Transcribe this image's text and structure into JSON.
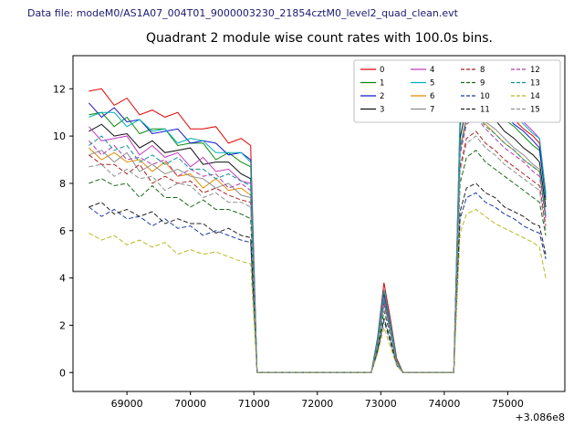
{
  "chart_data": {
    "type": "line",
    "header": "Data file: modeM0/AS1A07_004T01_9000003230_21854cztM0_level2_quad_clean.evt",
    "header_color": "#191970",
    "title": "Quadrant 2 module wise count rates with 100.0s bins.",
    "xlabel": "",
    "ylabel": "",
    "x_offset_label": "+3.086e8",
    "xlim": [
      68150,
      75900
    ],
    "ylim": [
      -0.8,
      13.4
    ],
    "x_ticks": [
      69000,
      70000,
      71000,
      72000,
      73000,
      74000,
      75000
    ],
    "y_ticks": [
      0,
      2,
      4,
      6,
      8,
      10,
      12
    ],
    "grid": false,
    "legend_position": "upper right",
    "legend_columns": 4,
    "x": [
      68400,
      68600,
      68800,
      69000,
      69200,
      69400,
      69600,
      69800,
      70000,
      70200,
      70400,
      70600,
      70800,
      70950,
      71050,
      72850,
      72950,
      73050,
      73150,
      73250,
      73350,
      74150,
      74250,
      74350,
      74500,
      74650,
      74800,
      74950,
      75100,
      75250,
      75400,
      75500,
      75600
    ],
    "series": [
      {
        "name": "0",
        "color": "#e00000",
        "dash": false,
        "values": [
          11.9,
          12.0,
          11.3,
          11.6,
          10.9,
          11.1,
          10.8,
          11.0,
          10.3,
          10.3,
          10.4,
          9.7,
          9.9,
          9.6,
          0,
          0,
          1.5,
          3.8,
          2.3,
          0.6,
          0,
          0,
          10.7,
          12.2,
          12.6,
          12.0,
          11.6,
          11.1,
          10.7,
          10.3,
          10.0,
          9.7,
          7.6
        ]
      },
      {
        "name": "1",
        "color": "#0a8a0a",
        "dash": false,
        "values": [
          10.9,
          11.0,
          10.4,
          10.8,
          10.1,
          10.3,
          10.3,
          9.6,
          9.7,
          9.7,
          9.0,
          9.3,
          8.9,
          8.7,
          0,
          0,
          1.4,
          3.5,
          2.1,
          0.5,
          0,
          0,
          10.4,
          11.8,
          12.2,
          11.6,
          11.2,
          10.7,
          10.4,
          10.0,
          9.6,
          9.4,
          7.3
        ]
      },
      {
        "name": "2",
        "color": "#1515d0",
        "dash": false,
        "values": [
          11.4,
          10.8,
          11.2,
          10.6,
          10.7,
          10.1,
          10.2,
          10.3,
          9.7,
          9.8,
          9.7,
          9.2,
          9.3,
          9.0,
          0,
          0,
          1.4,
          3.5,
          2.1,
          0.5,
          0,
          0,
          10.5,
          12.0,
          12.4,
          11.8,
          11.4,
          10.9,
          10.5,
          10.2,
          9.8,
          9.5,
          7.4
        ]
      },
      {
        "name": "3",
        "color": "#111111",
        "dash": false,
        "values": [
          10.2,
          10.5,
          10.0,
          10.1,
          9.5,
          9.8,
          9.3,
          9.4,
          9.5,
          8.8,
          8.9,
          8.9,
          8.4,
          8.2,
          0,
          0,
          1.3,
          3.3,
          2.0,
          0.5,
          0,
          0,
          9.9,
          11.3,
          11.6,
          11.0,
          10.7,
          10.2,
          9.9,
          9.5,
          9.2,
          8.9,
          7.0
        ]
      },
      {
        "name": "4",
        "color": "#c23ac2",
        "dash": false,
        "values": [
          10.4,
          9.8,
          9.9,
          10.0,
          9.2,
          9.6,
          9.1,
          9.3,
          8.7,
          9.1,
          8.5,
          8.6,
          8.1,
          8.0,
          0,
          0,
          1.3,
          3.2,
          1.9,
          0.5,
          0,
          0,
          11.0,
          12.5,
          12.9,
          12.3,
          11.9,
          11.4,
          11.0,
          10.6,
          10.2,
          9.9,
          7.6
        ]
      },
      {
        "name": "5",
        "color": "#00b2b2",
        "dash": false,
        "values": [
          10.8,
          11.0,
          11.0,
          10.4,
          10.7,
          10.2,
          10.3,
          9.7,
          9.9,
          9.8,
          9.3,
          9.3,
          9.3,
          8.9,
          0,
          0,
          1.4,
          3.5,
          2.1,
          0.5,
          0,
          0,
          10.9,
          12.4,
          12.8,
          12.2,
          11.8,
          11.3,
          10.9,
          10.5,
          10.1,
          9.9,
          7.5
        ]
      },
      {
        "name": "6",
        "color": "#e08a00",
        "dash": false,
        "values": [
          9.5,
          9.0,
          9.3,
          8.9,
          9.0,
          8.5,
          8.9,
          8.3,
          8.4,
          7.8,
          8.2,
          7.7,
          7.8,
          7.5,
          0,
          0,
          1.2,
          3.0,
          1.8,
          0.4,
          0,
          0,
          9.4,
          10.7,
          11.0,
          10.5,
          10.1,
          9.7,
          9.4,
          9.0,
          8.7,
          8.5,
          6.6
        ]
      },
      {
        "name": "7",
        "color": "#8c8c8c",
        "dash": false,
        "values": [
          9.2,
          9.4,
          8.9,
          9.3,
          8.5,
          8.8,
          8.4,
          8.6,
          8.3,
          8.2,
          7.8,
          8.0,
          7.5,
          7.4,
          0,
          0,
          1.2,
          3.0,
          1.8,
          0.4,
          0,
          0,
          9.5,
          10.9,
          11.2,
          10.6,
          10.3,
          9.9,
          9.5,
          9.2,
          8.8,
          8.6,
          6.7
        ]
      },
      {
        "name": "8",
        "color": "#aa2222",
        "dash": true,
        "values": [
          9.2,
          8.8,
          8.8,
          8.4,
          8.8,
          8.0,
          8.3,
          8.0,
          8.1,
          7.6,
          7.8,
          7.5,
          7.3,
          7.2,
          0,
          0,
          1.2,
          2.9,
          1.7,
          0.4,
          0,
          0,
          8.7,
          9.9,
          10.2,
          9.7,
          9.4,
          9.0,
          8.7,
          8.4,
          8.1,
          7.9,
          6.2
        ]
      },
      {
        "name": "9",
        "color": "#1a6b1a",
        "dash": true,
        "values": [
          8.0,
          8.2,
          7.9,
          8.0,
          7.4,
          7.9,
          7.4,
          7.4,
          7.0,
          7.3,
          6.9,
          6.9,
          6.7,
          6.5,
          0,
          0,
          1.0,
          2.6,
          1.6,
          0.4,
          0,
          0,
          8.0,
          9.1,
          9.4,
          8.9,
          8.6,
          8.3,
          8.0,
          7.7,
          7.4,
          7.2,
          5.8
        ]
      },
      {
        "name": "10",
        "color": "#1a3a9c",
        "dash": true,
        "values": [
          7.0,
          6.6,
          6.9,
          6.5,
          6.6,
          6.2,
          6.5,
          6.1,
          6.2,
          5.8,
          6.0,
          5.8,
          5.6,
          5.5,
          0,
          0,
          0.9,
          2.2,
          1.3,
          0.3,
          0,
          0,
          6.5,
          7.4,
          7.6,
          7.2,
          7.0,
          6.7,
          6.5,
          6.2,
          6.0,
          5.9,
          4.8
        ]
      },
      {
        "name": "11",
        "color": "#222222",
        "dash": true,
        "values": [
          7.0,
          7.2,
          6.7,
          6.9,
          6.6,
          6.8,
          6.3,
          6.5,
          6.3,
          6.3,
          5.9,
          6.1,
          5.8,
          5.7,
          0,
          0,
          0.9,
          2.3,
          1.4,
          0.3,
          0,
          0,
          6.8,
          7.8,
          8.0,
          7.6,
          7.4,
          7.0,
          6.8,
          6.6,
          6.3,
          6.2,
          5.0
        ]
      },
      {
        "name": "12",
        "color": "#b03ab0",
        "dash": true,
        "values": [
          9.8,
          9.2,
          9.6,
          9.0,
          9.1,
          8.8,
          9.0,
          8.3,
          8.6,
          8.3,
          8.4,
          7.8,
          8.0,
          7.7,
          0,
          0,
          1.2,
          3.0,
          1.8,
          0.4,
          0,
          0,
          9.2,
          10.5,
          10.8,
          10.3,
          9.9,
          9.5,
          9.2,
          8.9,
          8.5,
          8.3,
          6.5
        ]
      },
      {
        "name": "13",
        "color": "#0f8f8f",
        "dash": true,
        "values": [
          9.6,
          10.0,
          9.4,
          9.6,
          8.9,
          9.2,
          8.8,
          9.1,
          8.6,
          8.6,
          8.2,
          8.4,
          8.1,
          7.9,
          0,
          0,
          1.2,
          3.1,
          1.9,
          0.4,
          0,
          0,
          9.4,
          10.7,
          11.0,
          10.4,
          10.1,
          9.7,
          9.4,
          9.0,
          8.7,
          8.5,
          6.6
        ]
      },
      {
        "name": "14",
        "color": "#b8b821",
        "dash": true,
        "values": [
          5.9,
          5.6,
          5.8,
          5.4,
          5.6,
          5.3,
          5.5,
          5.0,
          5.2,
          5.0,
          5.1,
          4.9,
          4.7,
          4.6,
          0,
          0,
          0.8,
          1.9,
          1.1,
          0.3,
          0,
          0,
          5.9,
          6.7,
          6.9,
          6.6,
          6.3,
          6.1,
          5.9,
          5.7,
          5.5,
          5.3,
          4.0
        ]
      },
      {
        "name": "15",
        "color": "#8f8f8f",
        "dash": true,
        "values": [
          8.7,
          8.8,
          8.3,
          8.6,
          8.2,
          8.3,
          7.7,
          8.0,
          7.9,
          7.4,
          7.6,
          7.2,
          7.2,
          7.0,
          0,
          0,
          1.1,
          2.8,
          1.7,
          0.4,
          0,
          0,
          8.5,
          9.7,
          10.0,
          9.5,
          9.2,
          8.8,
          8.5,
          8.2,
          7.9,
          7.7,
          6.0
        ]
      }
    ]
  }
}
